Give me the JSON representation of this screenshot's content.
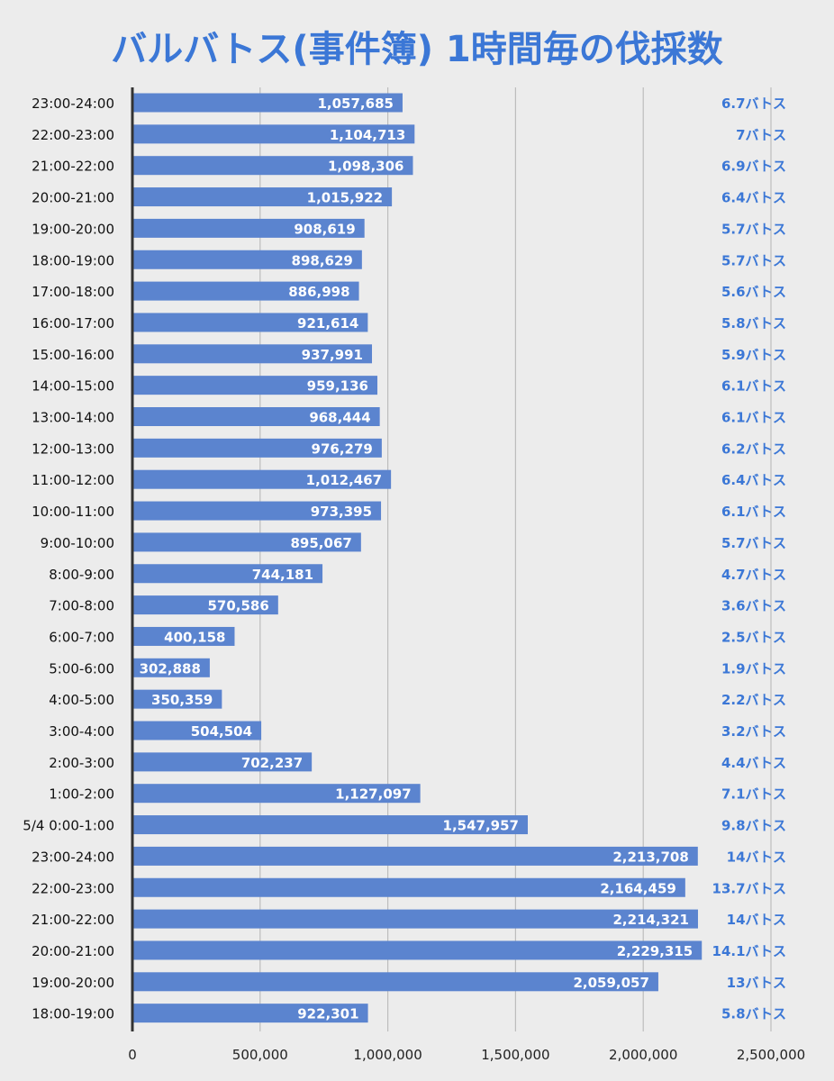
{
  "chart_data": {
    "type": "bar",
    "orientation": "horizontal",
    "title": "バルバトス(事件簿) 1時間毎の伐採数",
    "xlim": [
      0,
      2500000
    ],
    "xticks": [
      0,
      500000,
      1000000,
      1500000,
      2000000,
      2500000
    ],
    "xtick_labels": [
      "0",
      "500,000",
      "1,000,000",
      "1,500,000",
      "2,000,000",
      "2,500,000"
    ],
    "grid": true,
    "colors": {
      "bar": "#5b84cf",
      "title": "#3b77d6",
      "annotation": "#3b77d6",
      "background": "#ececec",
      "gridline": "#bdbdbd"
    },
    "categories": [
      "23:00-24:00",
      "22:00-23:00",
      "21:00-22:00",
      "20:00-21:00",
      "19:00-20:00",
      "18:00-19:00",
      "17:00-18:00",
      "16:00-17:00",
      "15:00-16:00",
      "14:00-15:00",
      "13:00-14:00",
      "12:00-13:00",
      "11:00-12:00",
      "10:00-11:00",
      "9:00-10:00",
      "8:00-9:00",
      "7:00-8:00",
      "6:00-7:00",
      "5:00-6:00",
      "4:00-5:00",
      "3:00-4:00",
      "2:00-3:00",
      "1:00-2:00",
      "5/4 0:00-1:00",
      "23:00-24:00",
      "22:00-23:00",
      "21:00-22:00",
      "20:00-21:00",
      "19:00-20:00",
      "18:00-19:00"
    ],
    "values": [
      1057685,
      1104713,
      1098306,
      1015922,
      908619,
      898629,
      886998,
      921614,
      937991,
      959136,
      968444,
      976279,
      1012467,
      973395,
      895067,
      744181,
      570586,
      400158,
      302888,
      350359,
      504504,
      702237,
      1127097,
      1547957,
      2213708,
      2164459,
      2214321,
      2229315,
      2059057,
      922301
    ],
    "value_labels": [
      "1,057,685",
      "1,104,713",
      "1,098,306",
      "1,015,922",
      "908,619",
      "898,629",
      "886,998",
      "921,614",
      "937,991",
      "959,136",
      "968,444",
      "976,279",
      "1,012,467",
      "973,395",
      "895,067",
      "744,181",
      "570,586",
      "400,158",
      "302,888",
      "350,359",
      "504,504",
      "702,237",
      "1,127,097",
      "1,547,957",
      "2,213,708",
      "2,164,459",
      "2,214,321",
      "2,229,315",
      "2,059,057",
      "922,301"
    ],
    "annotations": [
      "6.7バトス",
      "7バトス",
      "6.9バトス",
      "6.4バトス",
      "5.7バトス",
      "5.7バトス",
      "5.6バトス",
      "5.8バトス",
      "5.9バトス",
      "6.1バトス",
      "6.1バトス",
      "6.2バトス",
      "6.4バトス",
      "6.1バトス",
      "5.7バトス",
      "4.7バトス",
      "3.6バトス",
      "2.5バトス",
      "1.9バトス",
      "2.2バトス",
      "3.2バトス",
      "4.4バトス",
      "7.1バトス",
      "9.8バトス",
      "14バトス",
      "13.7バトス",
      "14バトス",
      "14.1バトス",
      "13バトス",
      "5.8バトス"
    ]
  }
}
